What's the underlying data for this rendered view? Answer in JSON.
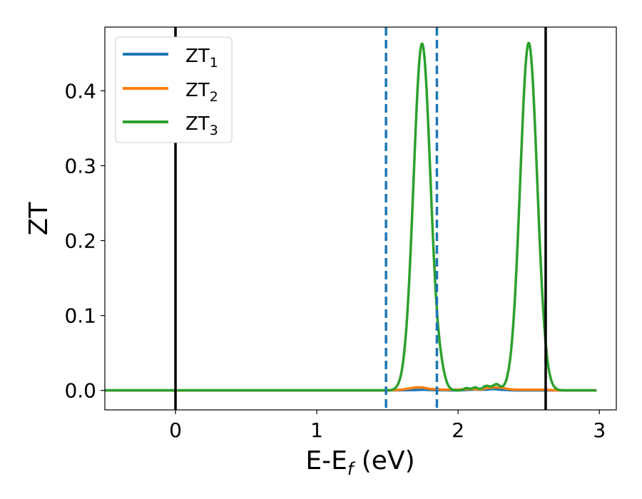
{
  "chart_data": {
    "type": "line",
    "title": "",
    "xlabel": "E-E",
    "xlabel_sub": "f",
    "xlabel_unit": " (eV)",
    "ylabel": "ZT",
    "xlim": [
      -0.5,
      3.12
    ],
    "ylim": [
      -0.026,
      0.485
    ],
    "xticks": [
      0,
      1,
      2,
      3
    ],
    "xtick_labels": [
      "0",
      "1",
      "2",
      "3"
    ],
    "yticks": [
      0.0,
      0.1,
      0.2,
      0.3,
      0.4
    ],
    "ytick_labels": [
      "0.0",
      "0.1",
      "0.2",
      "0.3",
      "0.4"
    ],
    "grid": false,
    "legend_position": "upper-left",
    "series": [
      {
        "name": "ZT",
        "name_sub": "1",
        "color": "#1f77b4",
        "x": [
          -0.5,
          1.5,
          1.7,
          1.75,
          1.8,
          2.0,
          2.1,
          2.2,
          2.25,
          2.3,
          2.4,
          2.6,
          2.98
        ],
        "y": [
          0,
          0,
          0.0005,
          0.001,
          0.0005,
          0,
          0.001,
          0.001,
          0.002,
          0.001,
          0,
          0,
          0
        ]
      },
      {
        "name": "ZT",
        "name_sub": "2",
        "color": "#ff7f0e",
        "x": [
          -0.5,
          1.5,
          1.6,
          1.7,
          1.75,
          1.8,
          1.9,
          2.0,
          2.1,
          2.15,
          2.2,
          2.25,
          2.3,
          2.35,
          2.4,
          2.5,
          2.6,
          2.7,
          2.98
        ],
        "y": [
          0,
          0,
          0.001,
          0.004,
          0.004,
          0.002,
          0.001,
          0.001,
          0.002,
          0.001,
          0.003,
          0.004,
          0.004,
          0.002,
          0.001,
          0.001,
          0.001,
          0,
          0
        ]
      },
      {
        "name": "ZT",
        "name_sub": "3",
        "color": "#2ca02c",
        "peaks": [
          {
            "center": 1.745,
            "height": 0.463,
            "sigma": 0.06
          },
          {
            "center": 2.5,
            "height": 0.464,
            "sigma": 0.06
          }
        ],
        "bumps": [
          {
            "center": 1.88,
            "height": 0.012,
            "sigma": 0.03
          },
          {
            "center": 2.06,
            "height": 0.003,
            "sigma": 0.02
          },
          {
            "center": 2.12,
            "height": 0.004,
            "sigma": 0.02
          },
          {
            "center": 2.2,
            "height": 0.006,
            "sigma": 0.025
          },
          {
            "center": 2.27,
            "height": 0.008,
            "sigma": 0.025
          }
        ],
        "x_range": [
          -0.5,
          2.98
        ]
      }
    ],
    "vlines": [
      {
        "x": 0.0,
        "style": "solid",
        "color": "#000000"
      },
      {
        "x": 2.62,
        "style": "solid",
        "color": "#000000"
      },
      {
        "x": 1.49,
        "style": "dashed",
        "color": "#1f77b4"
      },
      {
        "x": 1.85,
        "style": "dashed",
        "color": "#1f77b4"
      }
    ]
  }
}
